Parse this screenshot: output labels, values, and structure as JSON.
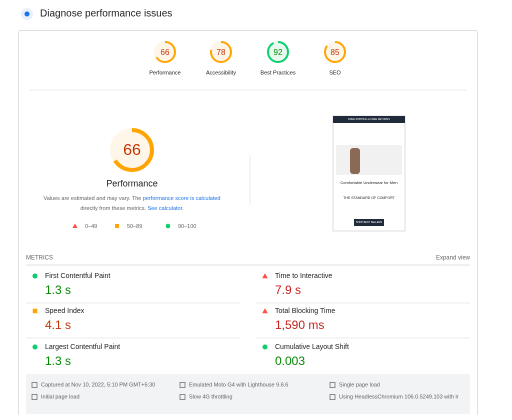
{
  "header": {
    "title": "Diagnose performance issues"
  },
  "scores": [
    {
      "label": "Performance",
      "value": 66,
      "color": "#ffa400",
      "text_color": "#c33300",
      "bg": "#fff6ea"
    },
    {
      "label": "Accessibility",
      "value": 78,
      "color": "#ffa400",
      "text_color": "#c33300",
      "bg": "#fff6ea"
    },
    {
      "label": "Best Practices",
      "value": 92,
      "color": "#0cce6b",
      "text_color": "#008800",
      "bg": "#e8faf0"
    },
    {
      "label": "SEO",
      "value": 85,
      "color": "#ffa400",
      "text_color": "#c33300",
      "bg": "#fff6ea"
    }
  ],
  "summary": {
    "title": "Performance",
    "text1": "Values are estimated and may vary. The ",
    "link1": "performance score is calculated",
    "text2": "directly from these metrics. ",
    "link2": "See calculator."
  },
  "legend": [
    {
      "icon": "triangle",
      "color": "#ff4e42",
      "label": "0–49"
    },
    {
      "icon": "square",
      "color": "#ffa400",
      "label": "50–89"
    },
    {
      "icon": "circle",
      "color": "#0cce6b",
      "label": "90–100"
    }
  ],
  "thumbnail": {
    "banner": "FREE SHIPPING & FREE RETURNS",
    "heading": "Comfortable Underwear for Men",
    "tagline": "THE STANDARD OF COMFORT",
    "button": "SHOP BEST SELLERS"
  },
  "metrics_heading": "METRICS",
  "expand": "Expand view",
  "metrics": [
    {
      "label": "First Contentful Paint",
      "value": "1.3 s",
      "icon": "circle",
      "color": "#0cce6b",
      "text_color": "#008800"
    },
    {
      "label": "Time to Interactive",
      "value": "7.9 s",
      "icon": "triangle",
      "color": "#ff4e42",
      "text_color": "#c7221f"
    },
    {
      "label": "Speed Index",
      "value": "4.1 s",
      "icon": "square",
      "color": "#ffa400",
      "text_color": "#c33300"
    },
    {
      "label": "Total Blocking Time",
      "value": "1,590 ms",
      "icon": "triangle",
      "color": "#ff4e42",
      "text_color": "#c7221f"
    },
    {
      "label": "Largest Contentful Paint",
      "value": "1.3 s",
      "icon": "circle",
      "color": "#0cce6b",
      "text_color": "#008800"
    },
    {
      "label": "Cumulative Layout Shift",
      "value": "0.003",
      "icon": "circle",
      "color": "#0cce6b",
      "text_color": "#008800"
    }
  ],
  "footer": [
    "Captured at Nov 10, 2022, 5:10 PM GMT+5:30",
    "Emulated Moto G4 with Lighthouse 9.6.6",
    "Single page load",
    "Initial page load",
    "Slow 4G throttling",
    "Using HeadlessChromium 106.0.5249.103 with lr"
  ]
}
